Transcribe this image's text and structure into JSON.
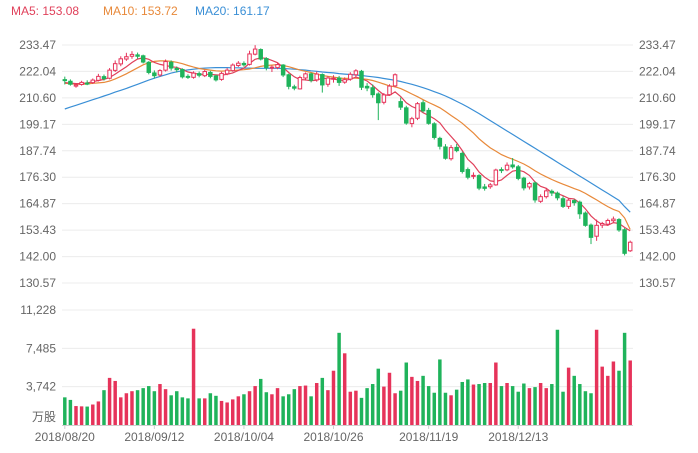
{
  "chart_data": [
    {
      "type": "candlestick",
      "legend": [
        {
          "label": "MA5: 153.08",
          "color": "#e0405a"
        },
        {
          "label": "MA10: 153.72",
          "color": "#e8893a"
        },
        {
          "label": "MA20: 161.17",
          "color": "#3a8fd6"
        }
      ],
      "y_ticks": [
        "233.47",
        "222.04",
        "210.60",
        "199.17",
        "187.74",
        "176.30",
        "164.87",
        "153.43",
        "142.00",
        "130.57"
      ],
      "ylim": [
        130.57,
        233.47
      ],
      "x_ticks": [
        "2018/08/20",
        "2018/09/12",
        "2018/10/04",
        "2018/10/26",
        "2018/11/19",
        "2018/12/13"
      ],
      "up_color": "#e6335a",
      "down_color": "#1fb35b",
      "candles": [
        [
          218.5,
          218.2,
          219.8,
          216.4
        ],
        [
          217.8,
          216.5,
          218.6,
          215.9
        ],
        [
          215.7,
          216.2,
          217.0,
          215.0
        ],
        [
          216.4,
          217.3,
          218.0,
          215.9
        ],
        [
          217.0,
          216.8,
          218.2,
          216.1
        ],
        [
          217.2,
          218.3,
          219.0,
          216.6
        ],
        [
          218.2,
          219.9,
          221.0,
          217.7
        ],
        [
          219.8,
          218.9,
          220.7,
          218.1
        ],
        [
          219.1,
          222.6,
          223.5,
          218.6
        ],
        [
          222.5,
          225.4,
          226.8,
          221.8
        ],
        [
          225.3,
          227.5,
          228.6,
          224.3
        ],
        [
          227.4,
          228.4,
          230.1,
          226.6
        ],
        [
          228.6,
          229.4,
          230.8,
          227.5
        ],
        [
          229.2,
          228.6,
          230.2,
          227.5
        ],
        [
          228.8,
          226.1,
          229.3,
          225.5
        ],
        [
          226.0,
          221.6,
          226.5,
          220.8
        ],
        [
          221.4,
          220.2,
          222.5,
          219.0
        ],
        [
          220.5,
          222.4,
          223.0,
          219.8
        ],
        [
          222.6,
          226.3,
          227.2,
          222.0
        ],
        [
          226.0,
          223.5,
          226.8,
          222.4
        ],
        [
          223.3,
          222.8,
          224.2,
          221.6
        ],
        [
          222.9,
          219.7,
          223.4,
          219.0
        ],
        [
          219.9,
          219.6,
          220.8,
          218.8
        ],
        [
          219.5,
          221.3,
          222.1,
          218.9
        ],
        [
          221.1,
          220.4,
          222.0,
          219.5
        ],
        [
          220.2,
          222.0,
          222.7,
          219.6
        ],
        [
          221.6,
          219.9,
          222.3,
          219.1
        ],
        [
          220.1,
          218.4,
          220.6,
          217.7
        ],
        [
          218.6,
          221.2,
          221.9,
          218.0
        ],
        [
          221.0,
          222.6,
          223.5,
          220.4
        ],
        [
          222.4,
          224.8,
          225.5,
          221.9
        ],
        [
          224.6,
          225.6,
          226.5,
          224.0
        ],
        [
          225.5,
          224.9,
          226.4,
          224.1
        ],
        [
          225.1,
          229.6,
          231.0,
          224.6
        ],
        [
          229.5,
          231.7,
          233.4,
          229.0
        ],
        [
          231.5,
          227.4,
          232.0,
          226.8
        ],
        [
          227.6,
          223.7,
          228.2,
          222.5
        ],
        [
          223.6,
          223.9,
          224.7,
          221.8
        ],
        [
          223.7,
          225.0,
          225.6,
          223.0
        ],
        [
          224.8,
          220.5,
          225.2,
          219.6
        ],
        [
          220.6,
          215.6,
          221.1,
          214.3
        ],
        [
          215.4,
          214.8,
          216.3,
          213.9
        ],
        [
          214.5,
          219.4,
          220.2,
          214.2
        ],
        [
          219.2,
          221.0,
          221.6,
          218.1
        ],
        [
          221.0,
          218.2,
          221.5,
          217.3
        ],
        [
          218.4,
          220.9,
          222.0,
          217.6
        ],
        [
          220.7,
          216.2,
          221.2,
          212.9
        ],
        [
          216.5,
          219.2,
          220.0,
          215.4
        ],
        [
          219.1,
          219.1,
          220.4,
          217.2
        ],
        [
          219.2,
          217.3,
          220.1,
          215.8
        ],
        [
          217.4,
          218.5,
          219.5,
          216.7
        ],
        [
          218.7,
          220.8,
          221.7,
          218.0
        ],
        [
          220.6,
          222.3,
          223.0,
          219.6
        ],
        [
          222.1,
          215.2,
          222.7,
          214.0
        ],
        [
          215.6,
          214.9,
          217.0,
          213.5
        ],
        [
          215.0,
          212.0,
          216.4,
          210.7
        ],
        [
          212.3,
          208.5,
          213.0,
          201.0
        ],
        [
          208.7,
          211.9,
          212.7,
          207.8
        ],
        [
          212.0,
          215.7,
          216.5,
          211.6
        ],
        [
          215.8,
          220.6,
          221.2,
          215.1
        ],
        [
          209.0,
          206.6,
          210.8,
          205.4
        ],
        [
          206.3,
          199.7,
          207.2,
          199.0
        ],
        [
          199.5,
          201.6,
          202.4,
          197.9
        ],
        [
          201.8,
          208.1,
          208.8,
          201.0
        ],
        [
          208.5,
          205.0,
          209.6,
          204.3
        ],
        [
          205.2,
          199.6,
          206.3,
          199.0
        ],
        [
          199.4,
          193.5,
          200.1,
          192.6
        ],
        [
          193.1,
          189.7,
          193.8,
          188.3
        ],
        [
          189.4,
          184.5,
          190.6,
          183.9
        ],
        [
          184.3,
          189.1,
          190.2,
          183.5
        ],
        [
          189.2,
          187.8,
          190.7,
          187.1
        ],
        [
          186.6,
          178.8,
          187.4,
          177.9
        ],
        [
          179.6,
          176.3,
          180.5,
          175.4
        ],
        [
          176.8,
          177.1,
          178.4,
          175.5
        ],
        [
          177.0,
          171.6,
          177.6,
          170.7
        ],
        [
          172.1,
          171.5,
          173.4,
          170.5
        ],
        [
          172.2,
          173.0,
          173.8,
          171.3
        ],
        [
          173.0,
          179.4,
          180.0,
          172.6
        ],
        [
          179.6,
          179.2,
          180.6,
          178.1
        ],
        [
          179.5,
          181.5,
          182.7,
          178.9
        ],
        [
          181.6,
          180.8,
          184.6,
          180.0
        ],
        [
          180.8,
          175.8,
          181.6,
          175.0
        ],
        [
          175.9,
          171.7,
          176.5,
          170.6
        ],
        [
          172.1,
          173.6,
          174.3,
          171.0
        ],
        [
          173.8,
          166.5,
          174.4,
          165.3
        ],
        [
          165.9,
          167.9,
          168.9,
          165.2
        ],
        [
          167.9,
          170.4,
          171.7,
          167.1
        ],
        [
          170.2,
          169.5,
          171.0,
          168.2
        ],
        [
          169.4,
          167.4,
          170.1,
          166.3
        ],
        [
          167.0,
          163.7,
          168.1,
          163.0
        ],
        [
          163.7,
          166.4,
          167.1,
          162.6
        ],
        [
          166.2,
          165.3,
          166.8,
          164.0
        ],
        [
          165.5,
          160.5,
          166.2,
          158.3
        ],
        [
          160.8,
          155.5,
          161.5,
          154.9
        ],
        [
          155.6,
          150.3,
          156.3,
          147.4
        ],
        [
          150.8,
          155.5,
          158.0,
          148.8
        ],
        [
          155.6,
          156.3,
          157.0,
          154.3
        ],
        [
          156.0,
          157.6,
          158.4,
          155.3
        ],
        [
          157.5,
          158.2,
          159.3,
          156.8
        ],
        [
          158.0,
          153.5,
          158.6,
          152.7
        ],
        [
          153.6,
          143.4,
          154.3,
          142.5
        ],
        [
          144.5,
          148.2,
          148.9,
          144.0
        ]
      ],
      "ma5": [
        217.2,
        217.0,
        216.8,
        216.8,
        217.1,
        217.6,
        218.1,
        218.6,
        219.4,
        220.9,
        222.5,
        224.1,
        225.9,
        227.4,
        227.9,
        227.3,
        225.9,
        225.1,
        224.6,
        224.1,
        223.8,
        222.9,
        221.8,
        221.3,
        220.8,
        220.8,
        220.8,
        220.6,
        220.4,
        220.8,
        221.4,
        222.5,
        223.5,
        225.5,
        227.3,
        227.9,
        227.7,
        226.8,
        225.8,
        223.8,
        221.6,
        219.7,
        218.5,
        218.4,
        218.0,
        218.3,
        219.1,
        218.9,
        218.8,
        218.3,
        218.1,
        218.7,
        219.6,
        218.9,
        217.9,
        216.0,
        213.8,
        211.9,
        211.7,
        213.2,
        211.2,
        208.5,
        206.9,
        205.9,
        204.2,
        203.0,
        201.6,
        199.8,
        196.6,
        193.9,
        191.2,
        187.8,
        184.0,
        181.8,
        178.5,
        176.3,
        174.7,
        174.4,
        175.1,
        177.1,
        178.9,
        179.4,
        178.7,
        177.1,
        174.3,
        172.4,
        171.5,
        169.7,
        169.3,
        168.3,
        167.2,
        166.9,
        165.2,
        162.6,
        159.6,
        157.4,
        155.8,
        155.5,
        156.7,
        156.3,
        154.6,
        153.1
      ],
      "ma10": [
        216.9,
        216.8,
        216.6,
        216.5,
        216.6,
        216.9,
        217.1,
        217.3,
        217.9,
        218.8,
        219.9,
        221.0,
        222.3,
        223.6,
        224.9,
        225.8,
        226.4,
        226.6,
        226.6,
        226.4,
        226.0,
        225.4,
        224.6,
        223.9,
        223.3,
        222.9,
        222.6,
        222.3,
        222.2,
        222.3,
        222.4,
        222.6,
        222.8,
        223.1,
        223.6,
        224.2,
        224.6,
        224.8,
        225.0,
        224.6,
        224.1,
        223.4,
        222.6,
        222.1,
        221.6,
        220.9,
        220.3,
        219.9,
        219.6,
        219.2,
        219.0,
        219.1,
        219.1,
        218.9,
        218.6,
        218.1,
        217.4,
        216.6,
        215.8,
        215.4,
        214.6,
        213.5,
        212.3,
        211.1,
        209.8,
        208.6,
        207.5,
        206.3,
        204.7,
        203.0,
        201.4,
        199.6,
        197.5,
        195.4,
        192.9,
        190.9,
        189.0,
        187.6,
        186.1,
        185.0,
        184.1,
        183.1,
        182.0,
        180.7,
        179.1,
        177.7,
        176.5,
        175.3,
        174.3,
        173.3,
        172.4,
        171.4,
        170.5,
        169.3,
        167.9,
        166.5,
        165.0,
        163.6,
        162.4,
        161.5,
        158.7,
        153.72
      ],
      "ma20": [
        205.8,
        206.6,
        207.4,
        208.2,
        209.0,
        209.8,
        210.6,
        211.4,
        212.2,
        213.1,
        213.9,
        214.7,
        215.6,
        216.5,
        217.4,
        218.3,
        219.1,
        219.9,
        220.6,
        221.3,
        221.9,
        222.3,
        222.7,
        223.0,
        223.3,
        223.5,
        223.6,
        223.7,
        223.7,
        223.7,
        223.6,
        223.6,
        223.5,
        223.5,
        223.4,
        223.4,
        223.4,
        223.4,
        223.4,
        223.3,
        223.2,
        223.0,
        222.8,
        222.6,
        222.3,
        222.1,
        221.8,
        221.6,
        221.4,
        221.1,
        220.9,
        220.7,
        220.5,
        220.3,
        220.0,
        219.7,
        219.4,
        219.0,
        218.6,
        218.2,
        217.7,
        217.1,
        216.5,
        215.8,
        215.0,
        214.2,
        213.3,
        212.4,
        211.4,
        210.3,
        209.1,
        207.9,
        206.6,
        205.2,
        203.8,
        202.3,
        200.8,
        199.3,
        197.8,
        196.3,
        194.8,
        193.3,
        191.8,
        190.3,
        188.8,
        187.3,
        185.8,
        184.3,
        182.8,
        181.3,
        179.8,
        178.3,
        176.8,
        175.3,
        173.8,
        172.3,
        170.8,
        169.3,
        167.8,
        166.3,
        163.6,
        161.17
      ],
      "volume": {
        "unit_label": "万股",
        "y_ticks": [
          "11,228",
          "7,485",
          "3,742"
        ],
        "ylim": [
          0,
          11228
        ],
        "values": [
          2700,
          2450,
          1850,
          1820,
          1800,
          2000,
          2300,
          3400,
          4600,
          4300,
          2700,
          3100,
          3300,
          3400,
          3600,
          3800,
          3300,
          4000,
          3500,
          2900,
          3300,
          2700,
          2600,
          9400,
          2600,
          2600,
          3100,
          2850,
          2350,
          2200,
          2500,
          2800,
          3000,
          3300,
          3800,
          4500,
          3200,
          3000,
          3600,
          2800,
          3000,
          3500,
          3800,
          3850,
          2800,
          4100,
          4600,
          3400,
          5300,
          9000,
          7000,
          3250,
          3350,
          2650,
          3600,
          4000,
          5500,
          3750,
          5100,
          3100,
          3350,
          6100,
          4700,
          4300,
          4800,
          3800,
          3150,
          6400,
          3150,
          2900,
          3450,
          4200,
          4450,
          3950,
          4000,
          4100,
          4100,
          6100,
          3800,
          4100,
          3800,
          3250,
          4050,
          3600,
          3700,
          4100,
          3600,
          4000,
          9300,
          3250,
          5600,
          4800,
          4000,
          3300,
          3100,
          9300,
          5700,
          4800,
          6200,
          5300,
          9000,
          6300
        ]
      }
    }
  ]
}
